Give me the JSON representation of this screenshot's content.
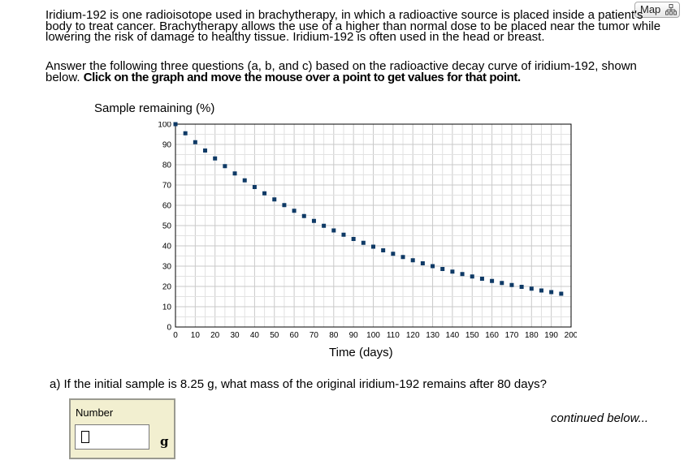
{
  "header": {
    "map_label": "Map",
    "map_icon": "sitemap-icon"
  },
  "intro": {
    "paragraph1": "Iridium-192 is one radioisotope used in brachytherapy, in which a radioactive source is placed inside a patient's body to treat cancer. Brachytherapy allows the use of a higher than normal dose to be placed near the tumor while lowering the risk of damage to healthy tissue. Iridium-192 is often used in the head or breast.",
    "paragraph2_normal": "Answer the following three questions (a, b, and c) based on the radioactive decay curve of iridium-192, shown below. ",
    "paragraph2_bold": "Click on the graph and move the mouse over a point to get values for that point."
  },
  "chart_data": {
    "type": "scatter",
    "ylabel": "Sample remaining (%)",
    "xlabel": "Time (days)",
    "xlim": [
      0,
      200
    ],
    "ylim": [
      0,
      100
    ],
    "xticks": [
      "0",
      "10",
      "20",
      "30",
      "40",
      "50",
      "60",
      "70",
      "80",
      "90",
      "100",
      "110",
      "120",
      "130",
      "140",
      "150",
      "160",
      "170",
      "180",
      "190",
      "200"
    ],
    "yticks": [
      "0",
      "10",
      "20",
      "30",
      "40",
      "50",
      "60",
      "70",
      "80",
      "90",
      "100"
    ],
    "grid": true,
    "marker_color": "#0f3a66",
    "series": [
      {
        "x": [
          0,
          5,
          10,
          15,
          20,
          25,
          30,
          35,
          40,
          45,
          50,
          55,
          60,
          65,
          70,
          75,
          80,
          85,
          90,
          95,
          100,
          105,
          110,
          115,
          120,
          125,
          130,
          135,
          140,
          145,
          150,
          155,
          160,
          165,
          170,
          175,
          180,
          185,
          190,
          195
        ],
        "values": [
          100,
          95.5,
          91.1,
          87.0,
          83.1,
          79.3,
          75.7,
          72.3,
          69.0,
          65.9,
          62.9,
          60.1,
          57.3,
          54.7,
          52.3,
          49.9,
          47.6,
          45.5,
          43.4,
          41.5,
          39.6,
          37.8,
          36.1,
          34.5,
          32.9,
          31.4,
          30.0,
          28.6,
          27.3,
          26.1,
          24.9,
          23.8,
          22.7,
          21.7,
          20.7,
          19.8,
          18.9,
          18.0,
          17.2,
          16.4
        ]
      }
    ]
  },
  "question_a": {
    "text": "a) If the initial sample is 8.25 g, what mass of the original iridium-192 remains after 80 days?",
    "field_label": "Number",
    "value": "",
    "unit": "g"
  },
  "footer": {
    "continued": "continued below..."
  }
}
